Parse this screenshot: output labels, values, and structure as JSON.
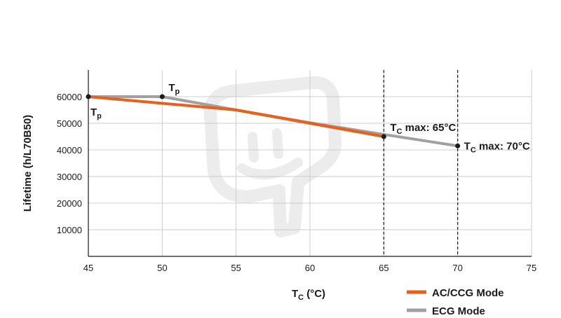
{
  "chart_data": {
    "type": "line",
    "ylabel": "Lifetime (h/L70B50)",
    "xlabel": {
      "main": "T",
      "sub": "C",
      "rest": " (°C)"
    },
    "xlim": [
      45,
      75
    ],
    "ylim": [
      0,
      70000
    ],
    "x_ticks": [
      45,
      50,
      55,
      60,
      65,
      70,
      75
    ],
    "y_ticks": [
      10000,
      20000,
      30000,
      40000,
      50000,
      60000
    ],
    "x_tick_labels": [
      "45",
      "50",
      "55",
      "60",
      "65",
      "70",
      "75"
    ],
    "y_tick_labels": [
      "10000",
      "20000",
      "30000",
      "40000",
      "50000",
      "60000"
    ],
    "grid": true,
    "series": [
      {
        "name": "AC/CCG Mode",
        "color": "#e8601c",
        "points": [
          [
            45,
            60000
          ],
          [
            55,
            55000
          ],
          [
            60,
            50000
          ],
          [
            65,
            45000
          ]
        ]
      },
      {
        "name": "ECG Mode",
        "color": "#a0a0a0",
        "points": [
          [
            45,
            60000
          ],
          [
            50,
            60000
          ],
          [
            55,
            55000
          ],
          [
            60,
            50200
          ],
          [
            65,
            45800
          ],
          [
            70,
            41500
          ]
        ]
      }
    ],
    "vlines": [
      65,
      70
    ],
    "markers": [
      [
        45,
        60000
      ],
      [
        50,
        60000
      ],
      [
        65,
        45000
      ],
      [
        70,
        41500
      ]
    ],
    "annotations": [
      {
        "main": "T",
        "sub": "p",
        "rest": "",
        "at": [
          45,
          60000
        ],
        "pos": "below-right"
      },
      {
        "main": "T",
        "sub": "p",
        "rest": "",
        "at": [
          50,
          60000
        ],
        "pos": "above-right"
      },
      {
        "main": "T",
        "sub": "C",
        "rest": " max: 65°C",
        "at": [
          65,
          45000
        ],
        "pos": "above-right"
      },
      {
        "main": "T",
        "sub": "C",
        "rest": " max: 70°C",
        "at": [
          70,
          41500
        ],
        "pos": "right"
      }
    ],
    "legend": {
      "placement": "bottom-right",
      "entries": [
        {
          "label": "AC/CCG Mode",
          "color": "#e8601c"
        },
        {
          "label": "ECG Mode",
          "color": "#a0a0a0"
        }
      ]
    }
  },
  "colors": {
    "axis": "#1a1a1a",
    "grid": "#cccccc",
    "watermark": "#ececec"
  },
  "watermark_icon": "plug-logo-icon"
}
